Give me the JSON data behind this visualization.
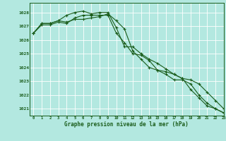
{
  "xlabel": "Graphe pression niveau de la mer (hPa)",
  "background_color": "#b3e8e0",
  "grid_color": "#ffffff",
  "line_color": "#1a5c1a",
  "xlim": [
    -0.5,
    23
  ],
  "ylim": [
    1020.5,
    1028.7
  ],
  "yticks": [
    1021,
    1022,
    1023,
    1024,
    1025,
    1026,
    1027,
    1028
  ],
  "xticks": [
    0,
    1,
    2,
    3,
    4,
    5,
    6,
    7,
    8,
    9,
    10,
    11,
    12,
    13,
    14,
    15,
    16,
    17,
    18,
    19,
    20,
    21,
    22,
    23
  ],
  "series": [
    [
      1026.5,
      1027.1,
      1027.1,
      1027.3,
      1027.2,
      1027.6,
      1027.8,
      1027.8,
      1027.8,
      1027.8,
      1026.5,
      1025.8,
      1025.0,
      1024.9,
      1024.5,
      1023.8,
      1023.5,
      1023.1,
      1023.1,
      1022.8,
      1022.0,
      1021.4,
      1021.0,
      1020.7
    ],
    [
      1026.5,
      1027.2,
      1027.2,
      1027.4,
      1027.8,
      1028.0,
      1028.1,
      1027.9,
      1028.0,
      1028.0,
      1026.9,
      1025.5,
      1025.5,
      1025.0,
      1024.6,
      1024.3,
      1023.9,
      1023.5,
      1023.2,
      1023.1,
      1022.8,
      1022.2,
      1021.6,
      1021.0
    ],
    [
      1026.5,
      1027.2,
      1027.2,
      1027.4,
      1027.3,
      1027.5,
      1027.5,
      1027.6,
      1027.7,
      1027.9,
      1027.4,
      1026.8,
      1025.2,
      1024.6,
      1024.0,
      1023.8,
      1023.7,
      1023.5,
      1023.2,
      1022.4,
      1021.8,
      1021.2,
      1021.0,
      1020.7
    ]
  ]
}
